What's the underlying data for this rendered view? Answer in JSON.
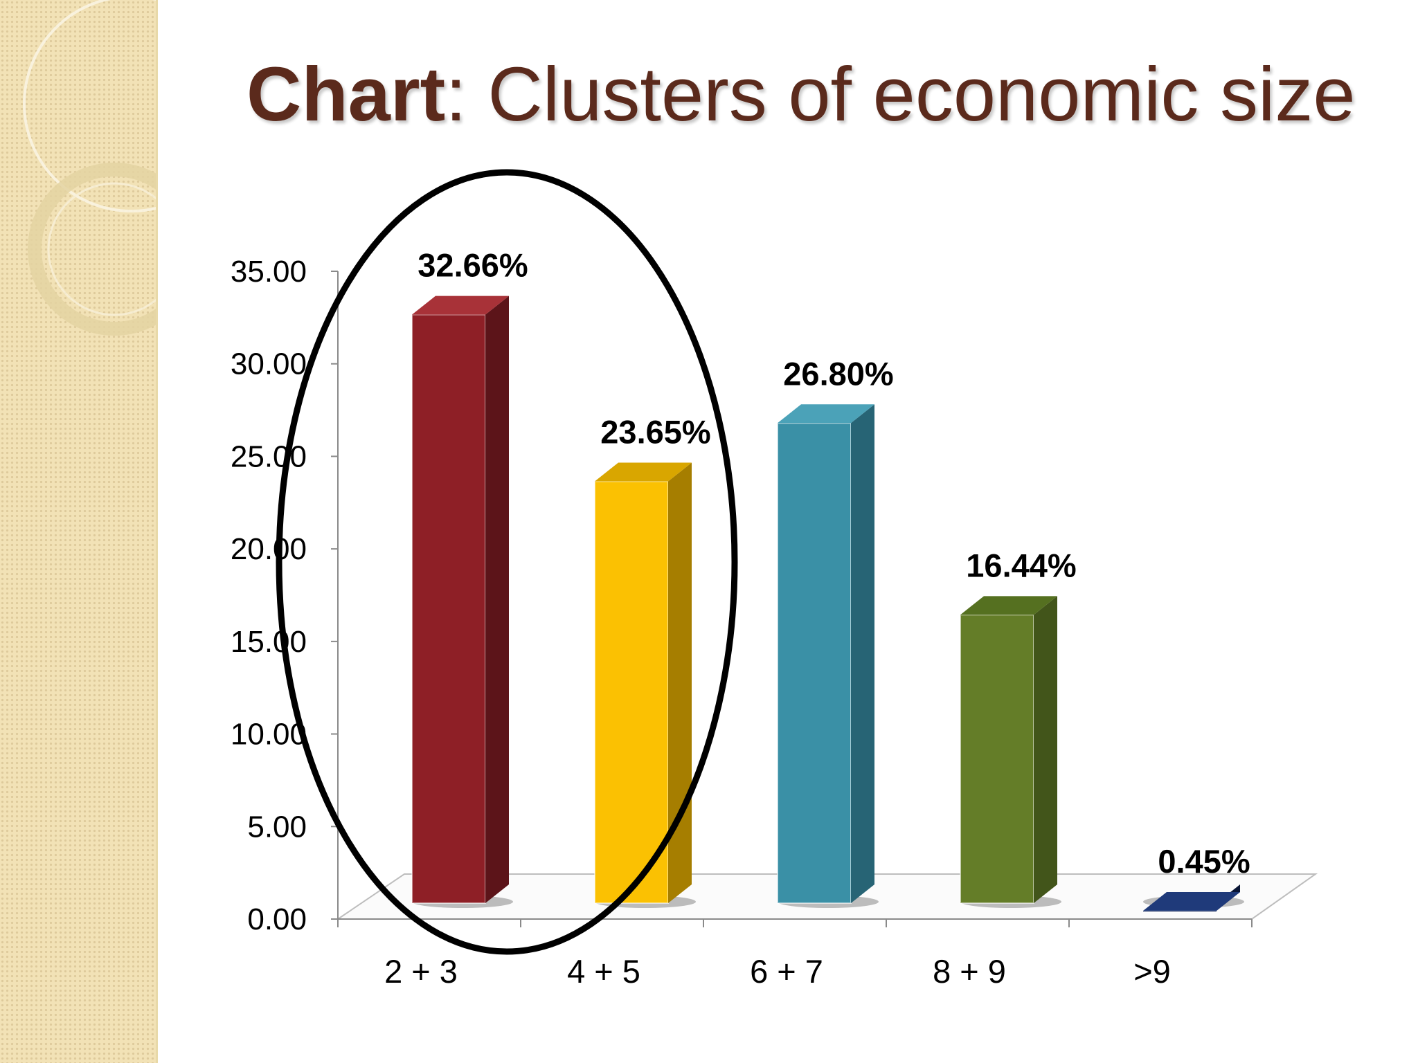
{
  "title": {
    "bold": "Chart",
    "rest": ": Clusters of economic size"
  },
  "chart_data": {
    "type": "bar",
    "title": "Chart: Clusters of economic size",
    "categories": [
      "2 + 3",
      "4 + 5",
      "6 + 7",
      "8 + 9",
      ">9"
    ],
    "values": [
      32.66,
      23.65,
      26.8,
      16.44,
      0.45
    ],
    "data_labels": [
      "32.66%",
      "23.65%",
      "26.80%",
      "16.44%",
      "0.45%"
    ],
    "yticks": [
      "0.00",
      "5.00",
      "10.00",
      "15.00",
      "20.00",
      "25.00",
      "30.00",
      "35.00"
    ],
    "ylim": [
      0,
      35
    ],
    "xlabel": "",
    "ylabel": "",
    "grid": false,
    "legend": "none",
    "colors": [
      "#8e1f26",
      "#fbc102",
      "#3a90a6",
      "#647d28",
      "#0f2055"
    ],
    "side_colors": [
      "#5c1419",
      "#a67e00",
      "#276475",
      "#42551a",
      "#091535"
    ],
    "top_colors": [
      "#a83238",
      "#d9a600",
      "#4ba2b8",
      "#557020",
      "#1f3a7a"
    ],
    "annotation": "ellipse around 2 + 3 and 4 + 5"
  }
}
